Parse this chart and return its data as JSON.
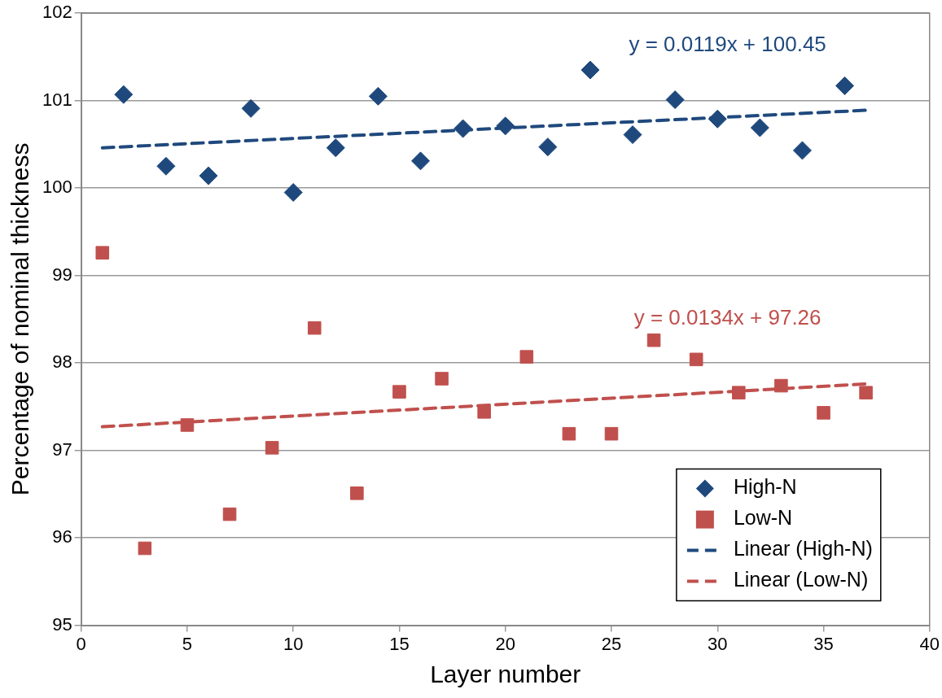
{
  "chart_data": {
    "type": "scatter",
    "xlabel": "Layer number",
    "ylabel": "Percentage of nominal thickness",
    "xlim": [
      0,
      40
    ],
    "xticks": [
      0,
      5,
      10,
      15,
      20,
      25,
      30,
      35,
      40
    ],
    "ylim": [
      95,
      102
    ],
    "yticks": [
      95,
      96,
      97,
      98,
      99,
      100,
      101,
      102
    ],
    "grid": "y",
    "legend": "bottom right",
    "series": [
      {
        "name": "High-N",
        "color": "#1f497d",
        "marker": "diamond",
        "x": [
          2,
          4,
          6,
          8,
          10,
          12,
          14,
          16,
          18,
          20,
          22,
          24,
          26,
          28,
          30,
          32,
          34,
          36
        ],
        "values": [
          101.07,
          100.25,
          100.14,
          100.91,
          99.95,
          100.46,
          101.05,
          100.31,
          100.68,
          100.71,
          100.47,
          101.35,
          100.61,
          101.01,
          100.79,
          100.69,
          100.43,
          101.17
        ]
      },
      {
        "name": "Low-N",
        "color": "#c0504d",
        "marker": "square",
        "x": [
          1,
          3,
          5,
          7,
          9,
          11,
          13,
          15,
          17,
          19,
          21,
          23,
          25,
          27,
          29,
          31,
          33,
          35,
          37
        ],
        "values": [
          99.26,
          95.88,
          97.29,
          96.27,
          97.03,
          98.4,
          96.51,
          97.67,
          97.82,
          97.44,
          98.07,
          97.19,
          97.19,
          98.26,
          98.04,
          97.66,
          97.74,
          97.43,
          97.66
        ]
      },
      {
        "name": "Linear (High-N)",
        "type": "line",
        "color": "#1f497d",
        "marker": "none",
        "line_style": "dashed",
        "x": [
          1,
          37
        ],
        "values": [
          100.46,
          100.89
        ]
      },
      {
        "name": "Linear (Low-N)",
        "type": "line",
        "color": "#c0504d",
        "marker": "none",
        "line_style": "dashed",
        "x": [
          1,
          37
        ],
        "values": [
          97.27,
          97.76
        ]
      }
    ],
    "annotations": [
      "y = 0.0119x + 100.45",
      "y = 0.0134x + 97.26"
    ]
  }
}
